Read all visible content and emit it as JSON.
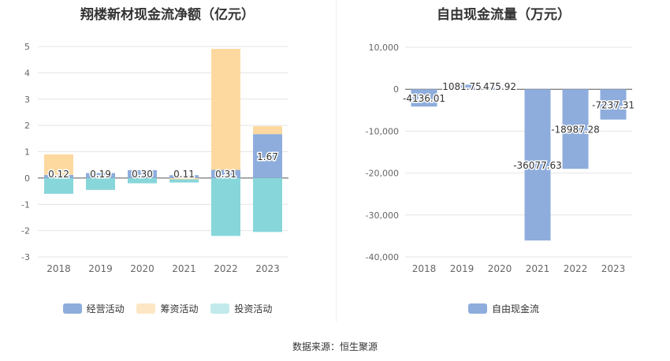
{
  "source_label": "数据来源：恒生聚源",
  "chart_data": [
    {
      "type": "bar",
      "stacked": true,
      "title": "翔楼新材现金流净额（亿元）",
      "categories": [
        "2018",
        "2019",
        "2020",
        "2021",
        "2022",
        "2023"
      ],
      "ylim": [
        -3,
        5
      ],
      "yticks": [
        "-3",
        "-2",
        "-1",
        "0",
        "1",
        "2",
        "3",
        "4",
        "5"
      ],
      "grid": true,
      "legend_position": "bottom",
      "series": [
        {
          "name": "经营活动",
          "color": "#8eaddc",
          "values": [
            0.12,
            0.19,
            0.3,
            0.11,
            0.31,
            1.67
          ],
          "labels": [
            "0.12",
            "0.19",
            "0.30",
            "0.11",
            "0.31",
            "1.67"
          ]
        },
        {
          "name": "筹资活动",
          "color": "#fdd9a0",
          "values": [
            0.78,
            0.0,
            0.0,
            -0.05,
            4.6,
            0.3
          ]
        },
        {
          "name": "投资活动",
          "color": "#87d6da",
          "values": [
            -0.6,
            -0.45,
            -0.2,
            -0.12,
            -2.2,
            -2.05
          ]
        }
      ]
    },
    {
      "type": "bar",
      "title": "自由现金流量（万元）",
      "categories": [
        "2018",
        "2019",
        "2020",
        "2021",
        "2022",
        "2023"
      ],
      "ylim": [
        -40000,
        10000
      ],
      "yticks": [
        "-40,000",
        "-30,000",
        "-20,000",
        "-10,000",
        "0",
        "10,000"
      ],
      "grid": true,
      "legend_position": "bottom",
      "series": [
        {
          "name": "自由现金流",
          "color": "#8eaddc",
          "values": [
            -4136.01,
            1081.75,
            475.92,
            -36077.63,
            -18987.28,
            -7237.31
          ],
          "labels": [
            "-4136.01",
            "1081.75",
            "475.92",
            "-36077.63",
            "-18987.28",
            "-7237.31"
          ]
        }
      ]
    }
  ]
}
